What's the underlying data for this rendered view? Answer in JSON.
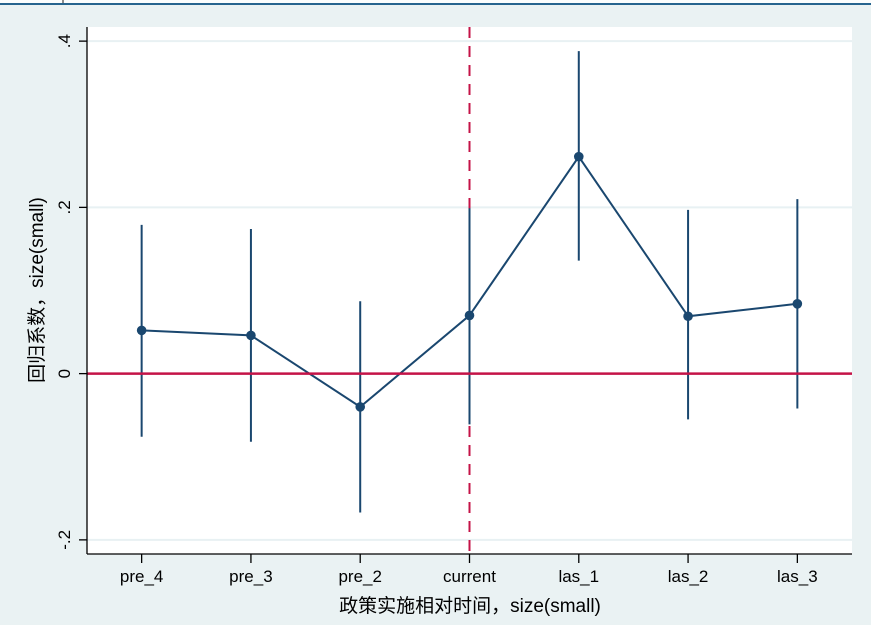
{
  "window": {
    "top_border_color": "#26648e",
    "outer_background": "#eaf2f3"
  },
  "chart_data": {
    "type": "line",
    "subtype": "event-study coefficient plot with confidence intervals",
    "title": "",
    "xlabel": "政策实施相对时间，size(small)",
    "ylabel": "回归系数，size(small)",
    "categories": [
      "pre_4",
      "pre_3",
      "pre_2",
      "current",
      "las_1",
      "las_2",
      "las_3"
    ],
    "series": [
      {
        "name": "coefficient",
        "values": [
          0.052,
          0.046,
          -0.04,
          0.07,
          0.261,
          0.069,
          0.084
        ],
        "ci_high": [
          0.179,
          0.174,
          0.087,
          0.199,
          0.388,
          0.197,
          0.21
        ],
        "ci_low": [
          -0.076,
          -0.082,
          -0.167,
          -0.061,
          0.136,
          -0.055,
          -0.042
        ]
      }
    ],
    "yticks": [
      {
        "v": -0.2,
        "label": "-.2"
      },
      {
        "v": 0,
        "label": "0"
      },
      {
        "v": 0.2,
        "label": ".2"
      },
      {
        "v": 0.4,
        "label": ".4"
      }
    ],
    "ylim": [
      -0.217,
      0.417
    ],
    "grid": true,
    "legend": "none",
    "ref_line_value": 0,
    "vline_category": "current",
    "vline_category_index": 3,
    "colors": {
      "navy": "#1a476f",
      "red": "#c41347",
      "grid": "#e8f1f3",
      "plot_bg": "#ffffff",
      "axis": "#000000"
    }
  }
}
